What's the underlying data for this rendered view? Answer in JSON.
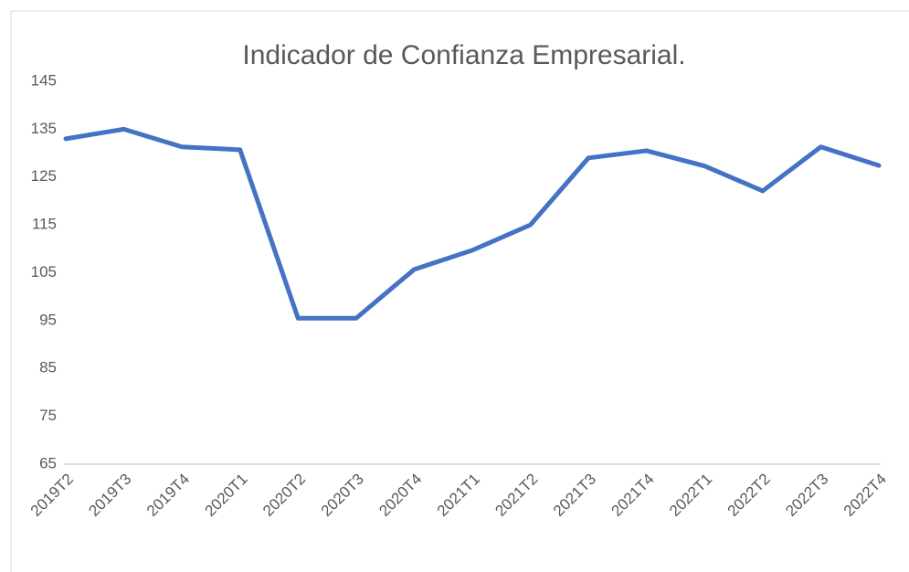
{
  "chart_data": {
    "type": "line",
    "title": "Indicador de Confianza Empresarial.",
    "categories": [
      "2019T2",
      "2019T3",
      "2019T4",
      "2020T1",
      "2020T2",
      "2020T3",
      "2020T4",
      "2021T1",
      "2021T2",
      "2021T3",
      "2021T4",
      "2022T1",
      "2022T2",
      "2022T3",
      "2022T4"
    ],
    "series": [
      {
        "name": "Indicador de Confianza Empresarial",
        "color": "#4472c4",
        "values": [
          133,
          135,
          131.3,
          130.7,
          95.5,
          95.5,
          105.7,
          109.7,
          115,
          129,
          130.5,
          127.3,
          122.1,
          131.3,
          127.4
        ]
      }
    ],
    "ylim": [
      65,
      145
    ],
    "yticks": [
      65,
      75,
      85,
      95,
      105,
      115,
      125,
      135,
      145
    ],
    "grid": false
  }
}
